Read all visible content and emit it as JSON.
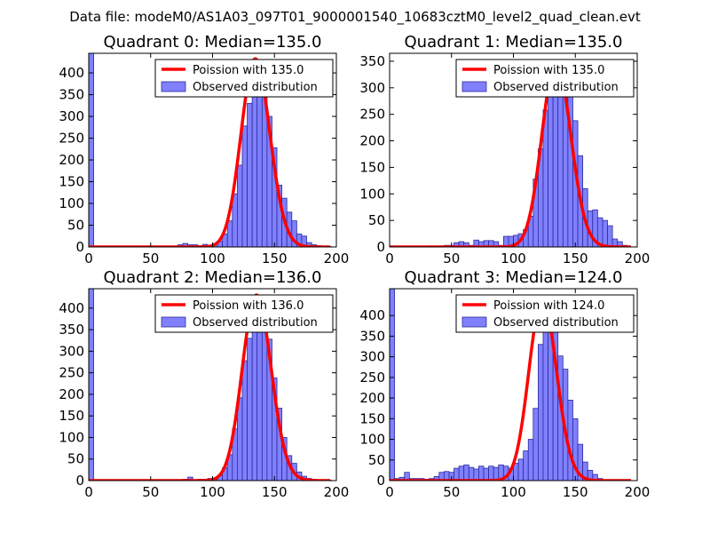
{
  "figure": {
    "suptitle": "Data file: modeM0/AS1A03_097T01_9000001540_10683cztM0_level2_quad_clean.evt"
  },
  "colors": {
    "bar_fill": "#8080ff",
    "bar_edge": "#2b2b99",
    "poisson": "#ff0000",
    "axis": "#000000"
  },
  "chart_data": [
    {
      "type": "bar",
      "title": "Quadrant 0: Median=135.0",
      "xlabel": "",
      "ylabel": "",
      "xlim": [
        0,
        200
      ],
      "ylim": [
        0,
        445
      ],
      "xticks": [
        0,
        50,
        100,
        150,
        200
      ],
      "yticks": [
        0,
        50,
        100,
        150,
        200,
        250,
        300,
        350,
        400
      ],
      "bin_width": 4,
      "bins": [
        [
          0,
          445
        ],
        [
          4,
          2
        ],
        [
          8,
          1
        ],
        [
          12,
          1
        ],
        [
          16,
          1
        ],
        [
          20,
          1
        ],
        [
          24,
          1
        ],
        [
          28,
          1
        ],
        [
          32,
          1
        ],
        [
          36,
          1
        ],
        [
          40,
          1
        ],
        [
          44,
          1
        ],
        [
          48,
          1
        ],
        [
          52,
          1
        ],
        [
          56,
          1
        ],
        [
          60,
          1
        ],
        [
          64,
          1
        ],
        [
          68,
          1
        ],
        [
          72,
          5
        ],
        [
          76,
          8
        ],
        [
          80,
          5
        ],
        [
          84,
          5
        ],
        [
          88,
          3
        ],
        [
          92,
          6
        ],
        [
          96,
          4
        ],
        [
          100,
          8
        ],
        [
          104,
          13
        ],
        [
          108,
          30
        ],
        [
          112,
          60
        ],
        [
          116,
          122
        ],
        [
          120,
          188
        ],
        [
          124,
          278
        ],
        [
          128,
          330
        ],
        [
          132,
          395
        ],
        [
          136,
          350
        ],
        [
          140,
          392
        ],
        [
          144,
          300
        ],
        [
          148,
          228
        ],
        [
          152,
          142
        ],
        [
          156,
          112
        ],
        [
          160,
          80
        ],
        [
          164,
          60
        ],
        [
          168,
          30
        ],
        [
          172,
          25
        ],
        [
          176,
          10
        ],
        [
          180,
          5
        ],
        [
          184,
          3
        ],
        [
          188,
          2
        ],
        [
          192,
          1
        ]
      ],
      "series": [
        {
          "name": "Poission with 135.0",
          "type": "line",
          "mu": 135.0,
          "peak": 432
        },
        {
          "name": "Observed distribution",
          "type": "bar"
        }
      ],
      "legend": "top-right"
    },
    {
      "type": "bar",
      "title": "Quadrant 1: Median=135.0",
      "xlabel": "",
      "ylabel": "",
      "xlim": [
        0,
        200
      ],
      "ylim": [
        0,
        365
      ],
      "xticks": [
        0,
        50,
        100,
        150,
        200
      ],
      "yticks": [
        0,
        50,
        100,
        150,
        200,
        250,
        300,
        350
      ],
      "bin_width": 4,
      "bins": [
        [
          0,
          1
        ],
        [
          4,
          1
        ],
        [
          8,
          1
        ],
        [
          12,
          1
        ],
        [
          16,
          1
        ],
        [
          20,
          1
        ],
        [
          24,
          1
        ],
        [
          28,
          1
        ],
        [
          32,
          2
        ],
        [
          36,
          1
        ],
        [
          40,
          2
        ],
        [
          44,
          3
        ],
        [
          48,
          3
        ],
        [
          52,
          8
        ],
        [
          56,
          10
        ],
        [
          60,
          8
        ],
        [
          64,
          3
        ],
        [
          68,
          13
        ],
        [
          72,
          10
        ],
        [
          76,
          12
        ],
        [
          80,
          12
        ],
        [
          84,
          10
        ],
        [
          88,
          3
        ],
        [
          92,
          20
        ],
        [
          96,
          20
        ],
        [
          100,
          22
        ],
        [
          104,
          25
        ],
        [
          108,
          33
        ],
        [
          112,
          58
        ],
        [
          116,
          128
        ],
        [
          120,
          185
        ],
        [
          124,
          258
        ],
        [
          128,
          305
        ],
        [
          132,
          350
        ],
        [
          136,
          300
        ],
        [
          140,
          332
        ],
        [
          144,
          285
        ],
        [
          148,
          238
        ],
        [
          152,
          172
        ],
        [
          156,
          110
        ],
        [
          160,
          68
        ],
        [
          164,
          70
        ],
        [
          168,
          55
        ],
        [
          172,
          50
        ],
        [
          176,
          40
        ],
        [
          180,
          15
        ],
        [
          184,
          10
        ],
        [
          188,
          3
        ]
      ],
      "series": [
        {
          "name": "Poission with 135.0",
          "type": "line",
          "mu": 135.0,
          "peak": 350
        },
        {
          "name": "Observed distribution",
          "type": "bar"
        }
      ],
      "legend": "top-right"
    },
    {
      "type": "bar",
      "title": "Quadrant 2: Median=136.0",
      "xlabel": "",
      "ylabel": "",
      "xlim": [
        0,
        200
      ],
      "ylim": [
        0,
        445
      ],
      "xticks": [
        0,
        50,
        100,
        150,
        200
      ],
      "yticks": [
        0,
        50,
        100,
        150,
        200,
        250,
        300,
        350,
        400
      ],
      "bin_width": 4,
      "bins": [
        [
          0,
          445
        ],
        [
          4,
          1
        ],
        [
          8,
          1
        ],
        [
          12,
          1
        ],
        [
          16,
          1
        ],
        [
          20,
          1
        ],
        [
          24,
          1
        ],
        [
          28,
          1
        ],
        [
          32,
          1
        ],
        [
          36,
          1
        ],
        [
          40,
          1
        ],
        [
          44,
          1
        ],
        [
          48,
          1
        ],
        [
          52,
          1
        ],
        [
          56,
          1
        ],
        [
          60,
          1
        ],
        [
          64,
          1
        ],
        [
          68,
          1
        ],
        [
          72,
          1
        ],
        [
          76,
          3
        ],
        [
          80,
          8
        ],
        [
          84,
          2
        ],
        [
          88,
          3
        ],
        [
          92,
          3
        ],
        [
          96,
          5
        ],
        [
          100,
          5
        ],
        [
          104,
          12
        ],
        [
          108,
          30
        ],
        [
          112,
          60
        ],
        [
          116,
          120
        ],
        [
          120,
          192
        ],
        [
          124,
          278
        ],
        [
          128,
          330
        ],
        [
          132,
          408
        ],
        [
          136,
          415
        ],
        [
          140,
          408
        ],
        [
          144,
          328
        ],
        [
          148,
          238
        ],
        [
          152,
          168
        ],
        [
          156,
          100
        ],
        [
          160,
          58
        ],
        [
          164,
          40
        ],
        [
          168,
          20
        ],
        [
          172,
          10
        ],
        [
          176,
          5
        ],
        [
          180,
          3
        ],
        [
          184,
          2
        ],
        [
          188,
          1
        ],
        [
          192,
          1
        ]
      ],
      "series": [
        {
          "name": "Poission with 136.0",
          "type": "line",
          "mu": 136.0,
          "peak": 430
        },
        {
          "name": "Observed distribution",
          "type": "bar"
        }
      ],
      "legend": "top-right"
    },
    {
      "type": "bar",
      "title": "Quadrant 3: Median=124.0",
      "xlabel": "",
      "ylabel": "",
      "xlim": [
        0,
        200
      ],
      "ylim": [
        0,
        465
      ],
      "xticks": [
        0,
        50,
        100,
        150,
        200
      ],
      "yticks": [
        0,
        50,
        100,
        150,
        200,
        250,
        300,
        350,
        400
      ],
      "bin_width": 4,
      "bins": [
        [
          0,
          465
        ],
        [
          4,
          5
        ],
        [
          8,
          8
        ],
        [
          12,
          20
        ],
        [
          16,
          5
        ],
        [
          20,
          5
        ],
        [
          24,
          5
        ],
        [
          28,
          3
        ],
        [
          32,
          5
        ],
        [
          36,
          10
        ],
        [
          40,
          20
        ],
        [
          44,
          22
        ],
        [
          48,
          20
        ],
        [
          52,
          30
        ],
        [
          56,
          35
        ],
        [
          60,
          38
        ],
        [
          64,
          32
        ],
        [
          68,
          28
        ],
        [
          72,
          35
        ],
        [
          76,
          30
        ],
        [
          80,
          35
        ],
        [
          84,
          32
        ],
        [
          88,
          38
        ],
        [
          92,
          35
        ],
        [
          96,
          30
        ],
        [
          100,
          42
        ],
        [
          104,
          52
        ],
        [
          108,
          72
        ],
        [
          112,
          100
        ],
        [
          116,
          175
        ],
        [
          120,
          330
        ],
        [
          124,
          440
        ],
        [
          128,
          440
        ],
        [
          132,
          425
        ],
        [
          136,
          302
        ],
        [
          140,
          270
        ],
        [
          144,
          195
        ],
        [
          148,
          150
        ],
        [
          152,
          88
        ],
        [
          156,
          45
        ],
        [
          160,
          25
        ],
        [
          164,
          15
        ],
        [
          168,
          5
        ]
      ],
      "series": [
        {
          "name": "Poission with 124.0",
          "type": "line",
          "mu": 124.0,
          "peak": 440
        },
        {
          "name": "Observed distribution",
          "type": "bar"
        }
      ],
      "legend": "top-right"
    }
  ]
}
